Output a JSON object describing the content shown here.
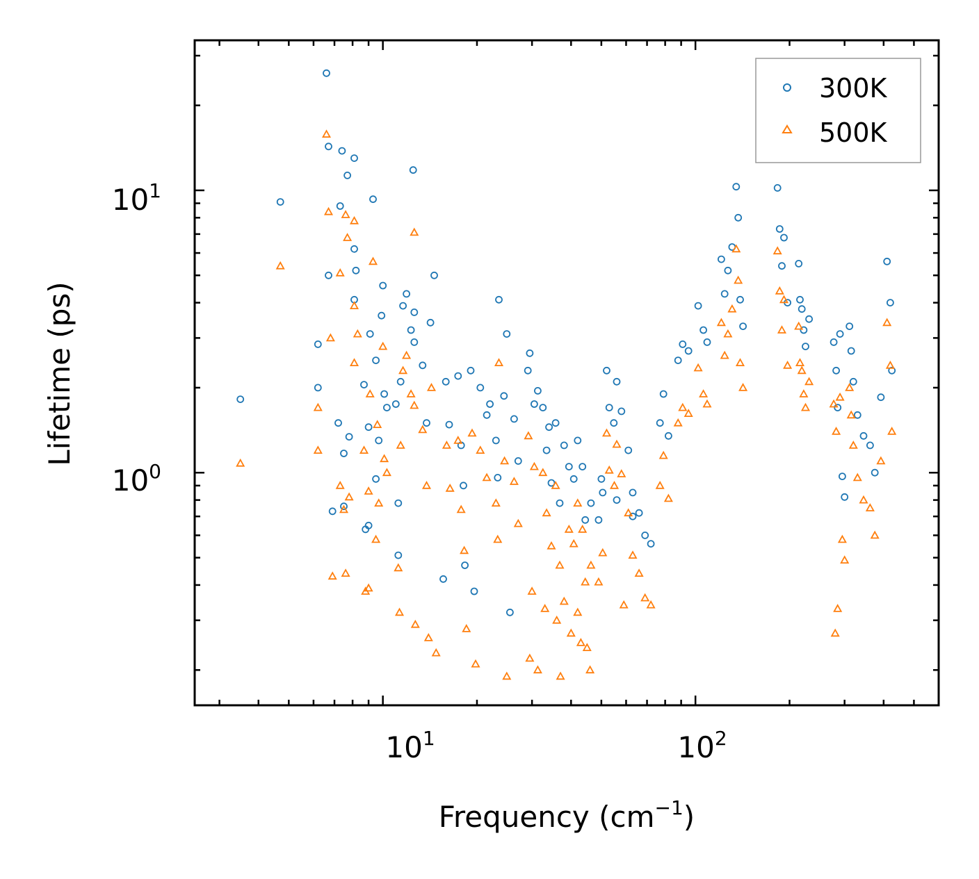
{
  "chart_data": {
    "type": "scatter",
    "xscale": "log",
    "yscale": "log",
    "xlim": [
      2.5,
      600
    ],
    "ylim": [
      0.15,
      34
    ],
    "xlabel": "Frequency (cm",
    "xlabel_sup": "−1",
    "xlabel_end": ")",
    "ylabel": "Lifetime (ps)",
    "x_ticks": [
      {
        "base": "10",
        "exp": "1",
        "value": 10
      },
      {
        "base": "10",
        "exp": "2",
        "value": 100
      }
    ],
    "y_ticks": [
      {
        "base": "10",
        "exp": "0",
        "value": 1
      },
      {
        "base": "10",
        "exp": "1",
        "value": 10
      }
    ],
    "legend": {
      "position": "top-right",
      "entries": [
        "300K",
        "500K"
      ]
    },
    "colors": {
      "300K": "#1f77b4",
      "500K": "#ff7f0e"
    },
    "series": [
      {
        "name": "300K",
        "marker": "circle",
        "points": [
          [
            3.5,
            1.82
          ],
          [
            4.7,
            9.1
          ],
          [
            6.2,
            2.85
          ],
          [
            6.2,
            2.0
          ],
          [
            6.6,
            26.0
          ],
          [
            6.7,
            14.3
          ],
          [
            6.7,
            5.0
          ],
          [
            6.9,
            0.73
          ],
          [
            7.2,
            1.5
          ],
          [
            7.3,
            8.8
          ],
          [
            7.4,
            13.8
          ],
          [
            7.5,
            0.76
          ],
          [
            7.5,
            1.17
          ],
          [
            7.7,
            11.3
          ],
          [
            7.8,
            1.34
          ],
          [
            8.1,
            4.1
          ],
          [
            8.1,
            6.2
          ],
          [
            8.1,
            13.0
          ],
          [
            8.2,
            5.2
          ],
          [
            8.7,
            2.05
          ],
          [
            8.8,
            0.63
          ],
          [
            9.0,
            0.65
          ],
          [
            9.0,
            1.45
          ],
          [
            9.1,
            3.1
          ],
          [
            9.3,
            9.3
          ],
          [
            9.5,
            0.95
          ],
          [
            9.5,
            2.5
          ],
          [
            9.7,
            1.3
          ],
          [
            9.9,
            3.6
          ],
          [
            10.0,
            4.6
          ],
          [
            10.1,
            1.9
          ],
          [
            10.3,
            1.7
          ],
          [
            11.0,
            1.75
          ],
          [
            11.2,
            0.78
          ],
          [
            11.2,
            0.51
          ],
          [
            11.4,
            2.1
          ],
          [
            11.6,
            3.9
          ],
          [
            11.9,
            4.3
          ],
          [
            12.3,
            3.2
          ],
          [
            12.5,
            11.8
          ],
          [
            12.6,
            2.9
          ],
          [
            12.6,
            3.7
          ],
          [
            13.4,
            2.4
          ],
          [
            13.8,
            1.5
          ],
          [
            14.2,
            3.4
          ],
          [
            14.6,
            5.0
          ],
          [
            15.6,
            0.42
          ],
          [
            15.9,
            2.1
          ],
          [
            16.3,
            1.48
          ],
          [
            17.4,
            2.2
          ],
          [
            17.8,
            1.25
          ],
          [
            18.1,
            0.9
          ],
          [
            18.3,
            0.47
          ],
          [
            19.1,
            2.3
          ],
          [
            19.6,
            0.38
          ],
          [
            20.5,
            2.0
          ],
          [
            21.5,
            1.6
          ],
          [
            23.0,
            1.3
          ],
          [
            23.3,
            0.96
          ],
          [
            23.5,
            4.1
          ],
          [
            24.4,
            1.87
          ],
          [
            24.9,
            3.1
          ],
          [
            25.5,
            0.32
          ],
          [
            26.3,
            1.55
          ],
          [
            27.1,
            1.1
          ],
          [
            29.1,
            2.3
          ],
          [
            29.5,
            2.65
          ],
          [
            30.5,
            1.75
          ],
          [
            31.3,
            1.95
          ],
          [
            32.5,
            1.7
          ],
          [
            33.4,
            1.2
          ],
          [
            34.6,
            0.92
          ],
          [
            35.7,
            1.5
          ],
          [
            36.8,
            0.78
          ],
          [
            39.4,
            1.05
          ],
          [
            40.8,
            0.95
          ],
          [
            42.0,
            1.3
          ],
          [
            43.5,
            1.05
          ],
          [
            44.4,
            0.68
          ],
          [
            46.3,
            0.78
          ],
          [
            49.0,
            0.68
          ],
          [
            50.5,
            0.85
          ],
          [
            52.0,
            2.3
          ],
          [
            53.0,
            1.7
          ],
          [
            54.8,
            1.5
          ],
          [
            56.0,
            2.1
          ],
          [
            58.0,
            1.65
          ],
          [
            61.0,
            1.2
          ],
          [
            63.0,
            0.85
          ],
          [
            66.0,
            0.72
          ],
          [
            69.0,
            0.6
          ],
          [
            72.0,
            0.56
          ],
          [
            77.0,
            1.5
          ],
          [
            79.0,
            1.9
          ],
          [
            82.0,
            1.35
          ],
          [
            88.0,
            2.5
          ],
          [
            91.0,
            2.85
          ],
          [
            95.0,
            2.7
          ],
          [
            102.0,
            3.9
          ],
          [
            106.0,
            3.2
          ],
          [
            109.0,
            2.9
          ],
          [
            121.0,
            5.7
          ],
          [
            124.0,
            4.3
          ],
          [
            127.0,
            5.2
          ],
          [
            131.0,
            6.3
          ],
          [
            135.0,
            10.3
          ],
          [
            137.0,
            8.0
          ],
          [
            139.0,
            4.1
          ],
          [
            142.0,
            3.3
          ],
          [
            183.0,
            10.2
          ],
          [
            186.0,
            7.3
          ],
          [
            189.0,
            5.4
          ],
          [
            192.0,
            6.8
          ],
          [
            197.0,
            4.0
          ],
          [
            214.0,
            5.5
          ],
          [
            216.0,
            4.1
          ],
          [
            219.0,
            3.8
          ],
          [
            222.0,
            3.2
          ],
          [
            225.0,
            2.8
          ],
          [
            231.0,
            3.5
          ],
          [
            277.0,
            2.9
          ],
          [
            282.0,
            2.3
          ],
          [
            285.0,
            1.7
          ],
          [
            290.0,
            3.1
          ],
          [
            295.0,
            0.97
          ],
          [
            300.0,
            0.82
          ],
          [
            311.0,
            3.3
          ],
          [
            315.0,
            2.7
          ],
          [
            320.0,
            2.1
          ],
          [
            330.0,
            1.6
          ],
          [
            345.0,
            1.35
          ],
          [
            362.0,
            1.25
          ],
          [
            375.0,
            1.0
          ],
          [
            392.0,
            1.85
          ],
          [
            410.0,
            5.6
          ],
          [
            420.0,
            4.0
          ],
          [
            425.0,
            2.3
          ],
          [
            50.0,
            0.95
          ],
          [
            56.0,
            0.8
          ],
          [
            63.0,
            0.7
          ],
          [
            38.0,
            1.25
          ],
          [
            34.0,
            1.45
          ],
          [
            22.0,
            1.75
          ]
        ]
      },
      {
        "name": "500K",
        "marker": "triangle",
        "points": [
          [
            3.5,
            1.08
          ],
          [
            4.7,
            5.4
          ],
          [
            6.2,
            1.7
          ],
          [
            6.2,
            1.2
          ],
          [
            6.6,
            15.8
          ],
          [
            6.7,
            8.4
          ],
          [
            6.8,
            3.0
          ],
          [
            6.9,
            0.43
          ],
          [
            7.3,
            0.9
          ],
          [
            7.3,
            5.1
          ],
          [
            7.5,
            0.74
          ],
          [
            7.6,
            0.44
          ],
          [
            7.6,
            8.2
          ],
          [
            7.7,
            6.8
          ],
          [
            7.8,
            0.82
          ],
          [
            8.1,
            2.45
          ],
          [
            8.1,
            3.9
          ],
          [
            8.1,
            7.8
          ],
          [
            8.3,
            3.1
          ],
          [
            8.7,
            1.2
          ],
          [
            8.8,
            0.38
          ],
          [
            9.0,
            0.39
          ],
          [
            9.0,
            0.86
          ],
          [
            9.1,
            1.9
          ],
          [
            9.3,
            5.6
          ],
          [
            9.5,
            0.58
          ],
          [
            9.6,
            1.48
          ],
          [
            9.7,
            0.78
          ],
          [
            10.0,
            2.8
          ],
          [
            10.1,
            1.12
          ],
          [
            10.3,
            1.0
          ],
          [
            11.2,
            0.46
          ],
          [
            11.3,
            0.32
          ],
          [
            11.4,
            1.25
          ],
          [
            11.6,
            2.3
          ],
          [
            11.9,
            2.6
          ],
          [
            12.3,
            1.9
          ],
          [
            12.6,
            7.1
          ],
          [
            12.6,
            1.73
          ],
          [
            12.7,
            0.29
          ],
          [
            13.4,
            1.42
          ],
          [
            13.8,
            0.9
          ],
          [
            14.0,
            0.26
          ],
          [
            14.3,
            2.0
          ],
          [
            14.8,
            0.23
          ],
          [
            16.0,
            1.25
          ],
          [
            16.4,
            0.88
          ],
          [
            17.4,
            1.3
          ],
          [
            17.8,
            0.74
          ],
          [
            18.2,
            0.53
          ],
          [
            18.5,
            0.28
          ],
          [
            19.3,
            1.38
          ],
          [
            19.8,
            0.21
          ],
          [
            20.5,
            1.2
          ],
          [
            21.5,
            0.96
          ],
          [
            23.0,
            0.78
          ],
          [
            23.3,
            0.58
          ],
          [
            23.5,
            2.45
          ],
          [
            24.5,
            1.1
          ],
          [
            24.9,
            0.19
          ],
          [
            26.3,
            0.93
          ],
          [
            27.1,
            0.66
          ],
          [
            29.2,
            1.35
          ],
          [
            29.5,
            0.22
          ],
          [
            30.5,
            1.05
          ],
          [
            31.3,
            0.2
          ],
          [
            32.5,
            1.0
          ],
          [
            33.4,
            0.72
          ],
          [
            34.6,
            0.55
          ],
          [
            35.7,
            0.9
          ],
          [
            36.8,
            0.47
          ],
          [
            37.0,
            0.19
          ],
          [
            39.4,
            0.63
          ],
          [
            40.8,
            0.56
          ],
          [
            42.0,
            0.78
          ],
          [
            43.5,
            0.63
          ],
          [
            44.4,
            0.41
          ],
          [
            46.0,
            0.2
          ],
          [
            46.3,
            0.47
          ],
          [
            49.0,
            0.41
          ],
          [
            50.5,
            0.52
          ],
          [
            52.0,
            1.38
          ],
          [
            53.0,
            1.02
          ],
          [
            55.0,
            0.9
          ],
          [
            56.0,
            1.26
          ],
          [
            58.0,
            0.99
          ],
          [
            59.0,
            0.34
          ],
          [
            61.0,
            0.72
          ],
          [
            63.0,
            0.51
          ],
          [
            66.0,
            0.44
          ],
          [
            69.0,
            0.36
          ],
          [
            72.0,
            0.34
          ],
          [
            77.0,
            0.9
          ],
          [
            79.0,
            1.15
          ],
          [
            82.0,
            0.81
          ],
          [
            88.0,
            1.5
          ],
          [
            91.0,
            1.7
          ],
          [
            95.0,
            1.62
          ],
          [
            102.0,
            2.35
          ],
          [
            106.0,
            1.9
          ],
          [
            109.0,
            1.75
          ],
          [
            121.0,
            3.4
          ],
          [
            124.0,
            2.6
          ],
          [
            127.0,
            3.1
          ],
          [
            131.0,
            3.8
          ],
          [
            135.0,
            6.2
          ],
          [
            137.0,
            4.8
          ],
          [
            139.0,
            2.45
          ],
          [
            142.0,
            2.0
          ],
          [
            183.0,
            6.1
          ],
          [
            186.0,
            4.4
          ],
          [
            189.0,
            3.2
          ],
          [
            192.0,
            4.1
          ],
          [
            197.0,
            2.4
          ],
          [
            214.0,
            3.3
          ],
          [
            216.0,
            2.45
          ],
          [
            219.0,
            2.3
          ],
          [
            222.0,
            1.9
          ],
          [
            225.0,
            1.7
          ],
          [
            231.0,
            2.1
          ],
          [
            277.0,
            1.75
          ],
          [
            280.0,
            0.27
          ],
          [
            282.0,
            1.4
          ],
          [
            285.0,
            0.33
          ],
          [
            290.0,
            1.85
          ],
          [
            295.0,
            0.58
          ],
          [
            300.0,
            0.49
          ],
          [
            311.0,
            2.0
          ],
          [
            315.0,
            1.6
          ],
          [
            320.0,
            1.25
          ],
          [
            330.0,
            0.96
          ],
          [
            345.0,
            0.8
          ],
          [
            362.0,
            0.75
          ],
          [
            375.0,
            0.6
          ],
          [
            392.0,
            1.1
          ],
          [
            410.0,
            3.4
          ],
          [
            420.0,
            2.4
          ],
          [
            425.0,
            1.4
          ],
          [
            30.0,
            0.38
          ],
          [
            33.0,
            0.33
          ],
          [
            36.0,
            0.3
          ],
          [
            40.0,
            0.27
          ],
          [
            43.0,
            0.25
          ],
          [
            45.0,
            0.24
          ],
          [
            38.0,
            0.35
          ],
          [
            42.0,
            0.32
          ]
        ]
      }
    ]
  }
}
